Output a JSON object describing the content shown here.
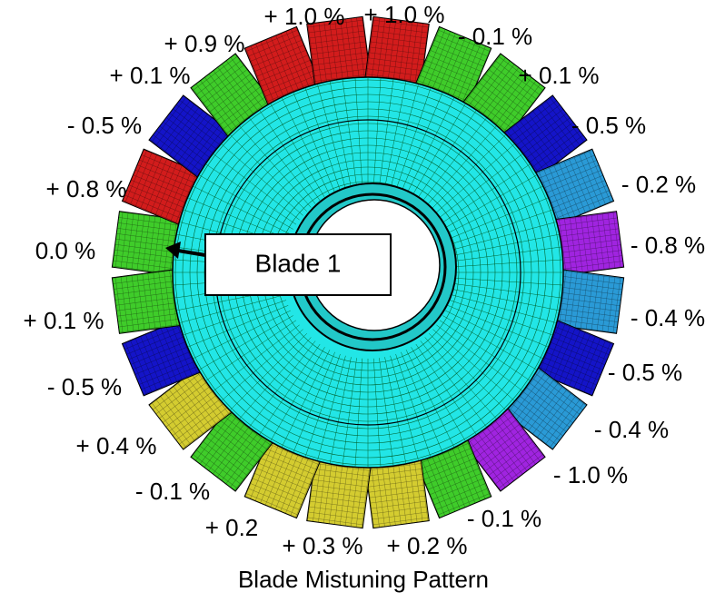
{
  "title": "Blade Mistuning Pattern",
  "callout": "Blade 1",
  "blades": [
    {
      "label": "0.0 %",
      "color": "#3fcc2a"
    },
    {
      "label": "+ 0.8 %",
      "color": "#d21c1c"
    },
    {
      "label": "- 0.5 %",
      "color": "#1414c8"
    },
    {
      "label": "+ 0.1 %",
      "color": "#3fcc2a"
    },
    {
      "label": "+ 0.9 %",
      "color": "#d21c1c"
    },
    {
      "label": "+ 1.0 %",
      "color": "#d21c1c"
    },
    {
      "label": "+ 1.0 %",
      "color": "#d21c1c"
    },
    {
      "label": "- 0.1 %",
      "color": "#3fcc2a"
    },
    {
      "label": "+ 0.1 %",
      "color": "#3fcc2a"
    },
    {
      "label": "- 0.5 %",
      "color": "#1414c8"
    },
    {
      "label": "- 0.2 %",
      "color": "#2a9ad6"
    },
    {
      "label": "- 0.8 %",
      "color": "#a024e0"
    },
    {
      "label": "- 0.4 %",
      "color": "#2a9ad6"
    },
    {
      "label": "- 0.5 %",
      "color": "#1414c8"
    },
    {
      "label": "- 0.4 %",
      "color": "#2a9ad6"
    },
    {
      "label": "- 1.0 %",
      "color": "#a024e0"
    },
    {
      "label": "- 0.1 %",
      "color": "#3fcc2a"
    },
    {
      "label": "+ 0.2 %",
      "color": "#d4cc30"
    },
    {
      "label": "+ 0.3 %",
      "color": "#d4cc30"
    },
    {
      "label": "+ 0.2",
      "color": "#d4cc30"
    },
    {
      "label": "- 0.1 %",
      "color": "#3fcc2a"
    },
    {
      "label": "+ 0.4 %",
      "color": "#d4cc30"
    },
    {
      "label": "- 0.5 %",
      "color": "#1414c8"
    },
    {
      "label": "+ 0.1 %",
      "color": "#3fcc2a"
    }
  ]
}
